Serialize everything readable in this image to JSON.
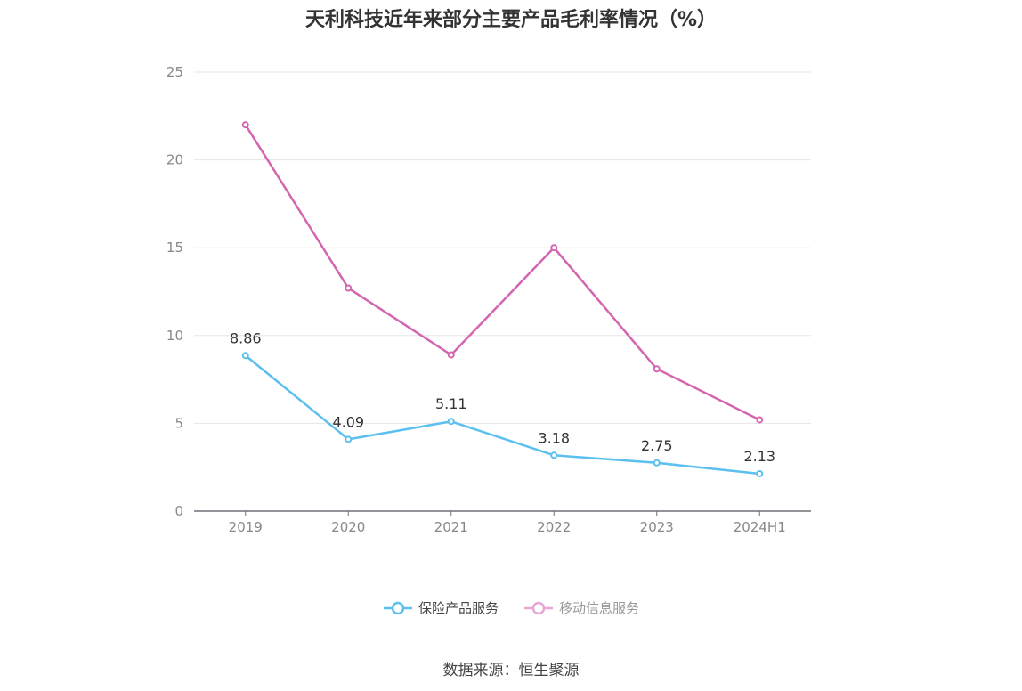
{
  "title": "天利科技近年来部分主要产品毛利率情况（%）",
  "source": "数据来源：恒生聚源",
  "chart_data": {
    "type": "line",
    "categories": [
      "2019",
      "2020",
      "2021",
      "2022",
      "2023",
      "2024H1"
    ],
    "ylim": [
      0,
      25
    ],
    "yticks": [
      0,
      5,
      10,
      15,
      20,
      25
    ],
    "grid": true,
    "legend_position": "bottom",
    "series": [
      {
        "name": "保险产品服务",
        "color": "#5bc0f0",
        "values": [
          8.86,
          4.09,
          5.11,
          3.18,
          2.75,
          2.13
        ],
        "labels": [
          "8.86",
          "4.09",
          "5.11",
          "3.18",
          "2.75",
          "2.13"
        ]
      },
      {
        "name": "移动信息服务",
        "color": "#d466b0",
        "legend_color": "#e6a8d3",
        "values": [
          22.0,
          12.7,
          8.9,
          15.0,
          8.1,
          5.2
        ]
      }
    ]
  }
}
